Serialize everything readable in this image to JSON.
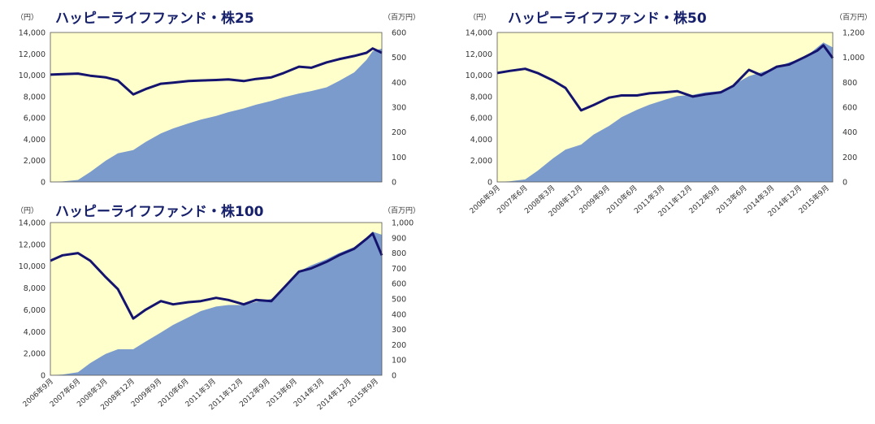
{
  "colors": {
    "plot_background": "#ffffcc",
    "area_fill": "#7b9bcc",
    "nav_line": "#14146e",
    "title": "#16206b"
  },
  "x_tick_labels": [
    "2006年9月",
    "2007年6月",
    "2008年3月",
    "2008年12月",
    "2009年9月",
    "2010年6月",
    "2011年3月",
    "2011年12月",
    "2012年9月",
    "2013年6月",
    "2014年3月",
    "2014年12月",
    "2015年9月"
  ],
  "chart_data": [
    {
      "type": "area+line",
      "title": "ハッピーライフファンド・株25",
      "left_unit": "（円）",
      "right_unit": "（百万円）",
      "left_ylim": [
        0,
        14000
      ],
      "left_ticks": [
        "14,000",
        "12,000",
        "10,000",
        "8,000",
        "6,000",
        "4,000",
        "2,000",
        "0"
      ],
      "right_ylim": [
        0,
        600
      ],
      "right_ticks": [
        "600",
        "500",
        "400",
        "300",
        "200",
        "100",
        "0"
      ],
      "x": [
        "2006-09",
        "2007-01",
        "2007-06",
        "2007-10",
        "2008-03",
        "2008-07",
        "2008-12",
        "2009-04",
        "2009-09",
        "2010-01",
        "2010-06",
        "2010-10",
        "2011-03",
        "2011-07",
        "2011-12",
        "2012-04",
        "2012-09",
        "2013-01",
        "2013-06",
        "2013-10",
        "2014-03",
        "2014-07",
        "2014-12",
        "2015-04",
        "2015-06",
        "2015-09"
      ],
      "series": [
        {
          "kind": "area",
          "axis": "right",
          "values": [
            0,
            2,
            8,
            40,
            85,
            115,
            128,
            160,
            195,
            215,
            235,
            250,
            265,
            280,
            295,
            310,
            325,
            340,
            355,
            365,
            380,
            405,
            440,
            490,
            525,
            535
          ]
        },
        {
          "kind": "line",
          "axis": "left",
          "values": [
            10050,
            10100,
            10150,
            9950,
            9800,
            9500,
            8200,
            8700,
            9200,
            9300,
            9450,
            9500,
            9550,
            9600,
            9450,
            9650,
            9800,
            10200,
            10800,
            10700,
            11200,
            11500,
            11800,
            12100,
            12500,
            12100
          ]
        }
      ],
      "xlabel": "",
      "ylabel": ""
    },
    {
      "type": "area+line",
      "title": "ハッピーライフファンド・株50",
      "left_unit": "（円）",
      "right_unit": "（百万円）",
      "left_ylim": [
        0,
        14000
      ],
      "left_ticks": [
        "14,000",
        "12,000",
        "10,000",
        "8,000",
        "6,000",
        "4,000",
        "2,000",
        "0"
      ],
      "right_ylim": [
        0,
        1200
      ],
      "right_ticks": [
        "1,200",
        "1,000",
        "800",
        "600",
        "400",
        "200",
        "0"
      ],
      "x": [
        "2006-09",
        "2007-01",
        "2007-06",
        "2007-10",
        "2008-03",
        "2008-07",
        "2008-12",
        "2009-04",
        "2009-09",
        "2010-01",
        "2010-06",
        "2010-10",
        "2011-03",
        "2011-07",
        "2011-12",
        "2012-04",
        "2012-09",
        "2013-01",
        "2013-06",
        "2013-10",
        "2014-03",
        "2014-07",
        "2014-12",
        "2015-04",
        "2015-06",
        "2015-09"
      ],
      "series": [
        {
          "kind": "area",
          "axis": "right",
          "values": [
            0,
            5,
            20,
            90,
            190,
            260,
            300,
            380,
            450,
            520,
            580,
            620,
            660,
            690,
            700,
            720,
            730,
            780,
            850,
            880,
            920,
            960,
            1000,
            1080,
            1120,
            1080
          ]
        },
        {
          "kind": "line",
          "axis": "left",
          "values": [
            10200,
            10400,
            10600,
            10200,
            9500,
            8800,
            6700,
            7200,
            7900,
            8100,
            8100,
            8300,
            8400,
            8500,
            8000,
            8200,
            8400,
            9000,
            10500,
            10000,
            10800,
            11000,
            11700,
            12300,
            12800,
            11600
          ]
        }
      ],
      "xlabel": "",
      "ylabel": ""
    },
    {
      "type": "area+line",
      "title": "ハッピーライフファンド・株100",
      "left_unit": "（円）",
      "right_unit": "（百万円）",
      "left_ylim": [
        0,
        14000
      ],
      "left_ticks": [
        "14,000",
        "12,000",
        "10,000",
        "8,000",
        "6,000",
        "4,000",
        "2,000",
        "0"
      ],
      "right_ylim": [
        0,
        1000
      ],
      "right_ticks": [
        "1,000",
        "900",
        "800",
        "700",
        "600",
        "500",
        "400",
        "300",
        "200",
        "100",
        "0"
      ],
      "x": [
        "2006-09",
        "2007-01",
        "2007-06",
        "2007-10",
        "2008-03",
        "2008-07",
        "2008-12",
        "2009-04",
        "2009-09",
        "2010-01",
        "2010-06",
        "2010-10",
        "2011-03",
        "2011-07",
        "2011-12",
        "2012-04",
        "2012-09",
        "2013-01",
        "2013-06",
        "2013-10",
        "2014-03",
        "2014-07",
        "2014-12",
        "2015-04",
        "2015-06",
        "2015-09"
      ],
      "series": [
        {
          "kind": "area",
          "axis": "right",
          "values": [
            0,
            5,
            20,
            80,
            140,
            170,
            170,
            220,
            280,
            330,
            380,
            420,
            450,
            460,
            460,
            480,
            500,
            560,
            680,
            720,
            760,
            800,
            840,
            900,
            940,
            920
          ]
        },
        {
          "kind": "line",
          "axis": "left",
          "values": [
            10500,
            11000,
            11200,
            10500,
            9000,
            7900,
            5200,
            6000,
            6800,
            6500,
            6700,
            6800,
            7100,
            6900,
            6500,
            6900,
            6800,
            8000,
            9500,
            9800,
            10400,
            11000,
            11600,
            12500,
            13000,
            11000
          ]
        }
      ],
      "xlabel": "",
      "ylabel": ""
    }
  ]
}
